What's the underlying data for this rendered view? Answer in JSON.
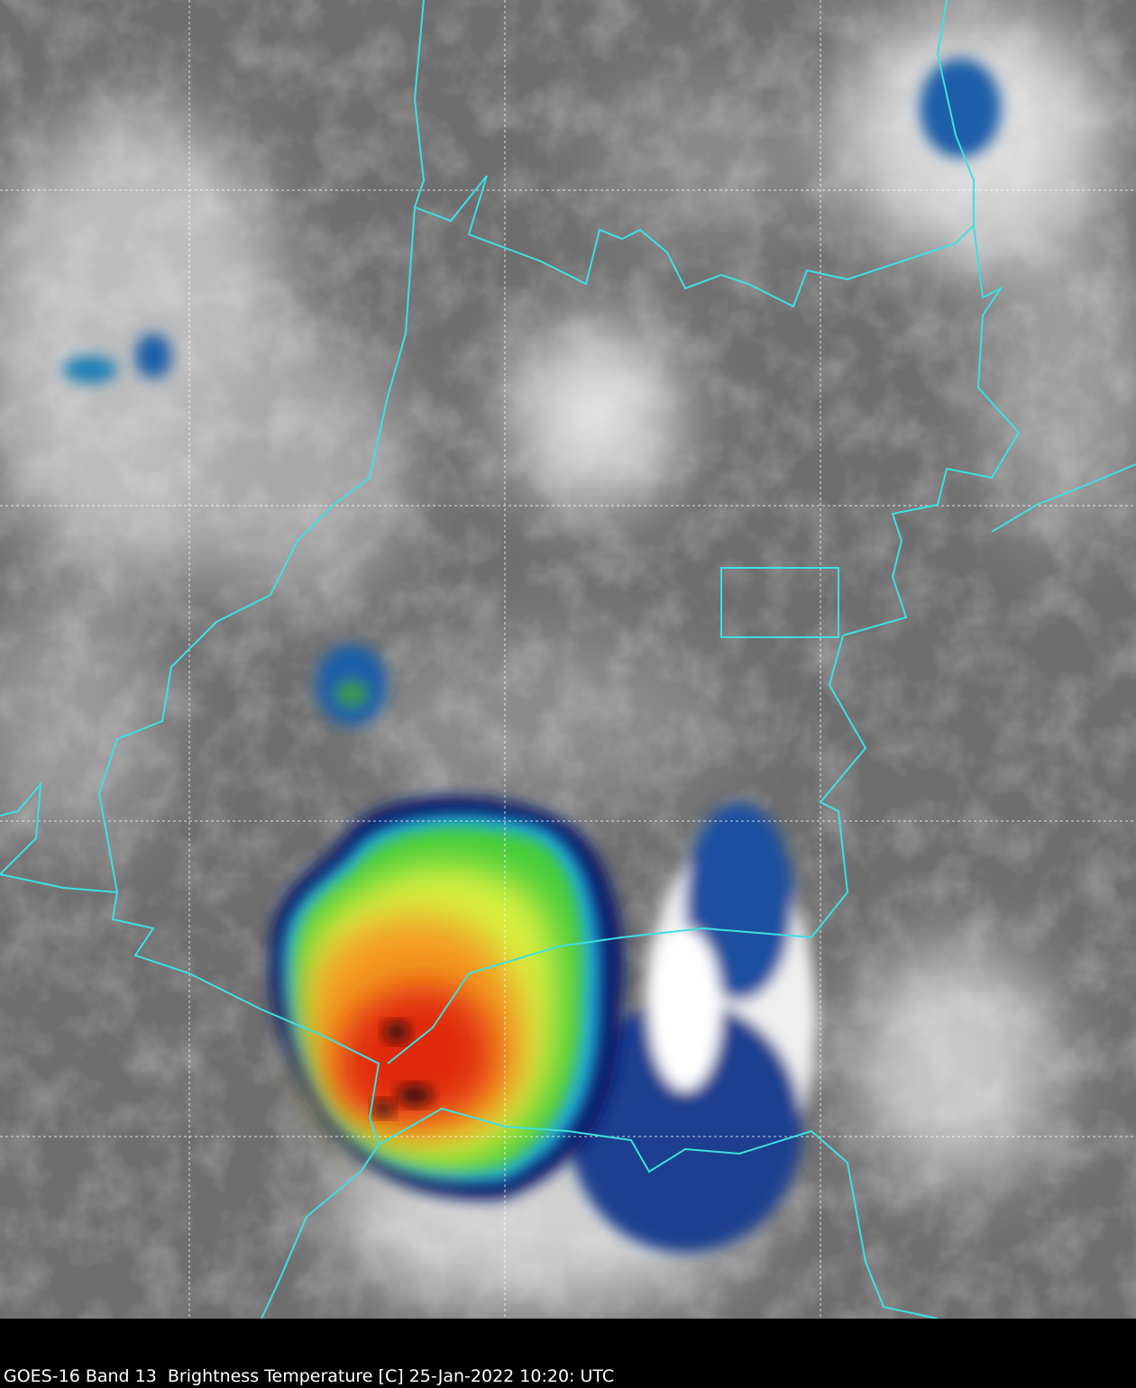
{
  "caption": "GOES-16 Band 13  Brightness Temperature [C] 25-Jan-2022 10:20: UTC"
}
